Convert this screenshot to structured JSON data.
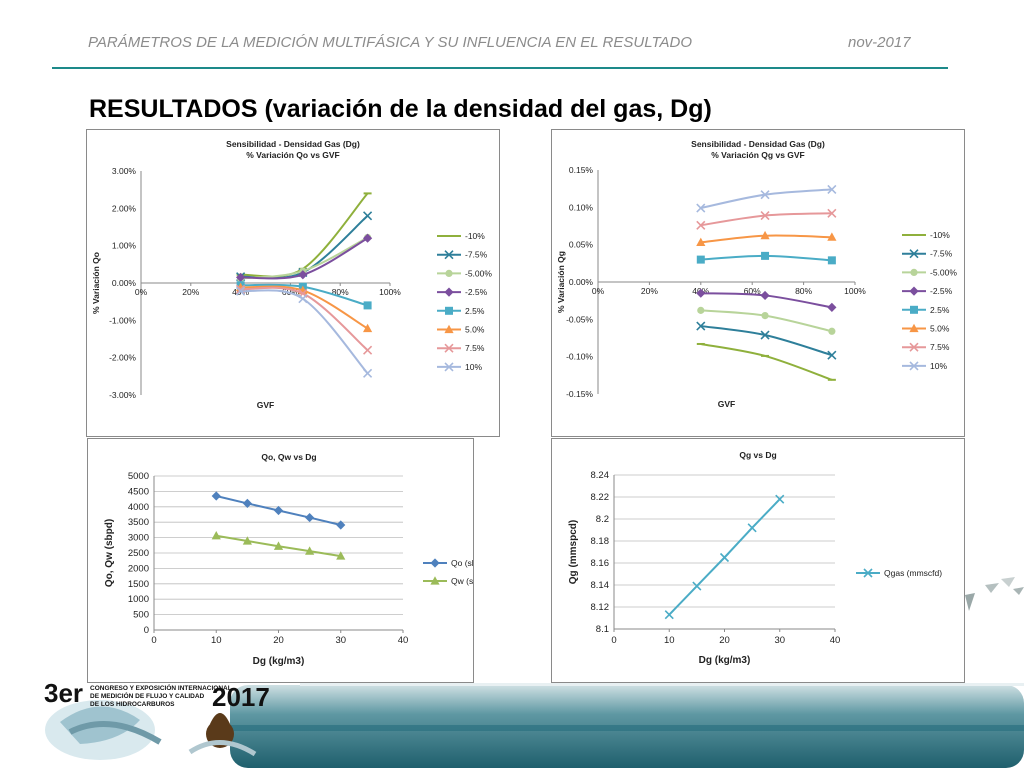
{
  "header": {
    "left_text": "PARÁMETROS DE LA MEDICIÓN MULTIFÁSICA Y SU INFLUENCIA EN EL RESULTADO",
    "right_text": "nov-2017",
    "accent_color": "#1d8a8a"
  },
  "slide_title": "RESULTADOS (variación de la densidad del gas, Dg)",
  "logo": {
    "big_text": "3er",
    "line1": "CONGRESO Y EXPOSICIÓN INTERNACIONAL",
    "line2": "DE MEDICIÓN DE FLUJO Y CALIDAD",
    "line3": "DE LOS HIDROCARBUROS",
    "year": "2017"
  },
  "chart_data": [
    {
      "type": "line",
      "title": "Sensibilidad - Densidad Gas (Dg)",
      "subtitle": "% Variación Qo vs GVF",
      "xlabel": "GVF",
      "ylabel": "% Variación Qo",
      "xlim": [
        0,
        100
      ],
      "ylim": [
        -3,
        3
      ],
      "xticks": [
        "0%",
        "20%",
        "40%",
        "60%",
        "80%",
        "100%"
      ],
      "yticks": [
        "3.00%",
        "2.00%",
        "1.00%",
        "0.00%",
        "-1.00%",
        "-2.00%",
        "-3.00%"
      ],
      "legend_position": "right",
      "x": [
        40,
        65,
        91
      ],
      "series": [
        {
          "name": "-10%",
          "values": [
            0.22,
            0.38,
            2.4
          ],
          "color": "#8fb03c",
          "marker": "dash"
        },
        {
          "name": "-7.5%",
          "values": [
            0.17,
            0.28,
            1.8
          ],
          "color": "#2e7f9a",
          "marker": "x"
        },
        {
          "name": "-5.00%",
          "values": [
            0.12,
            0.32,
            1.22
          ],
          "color": "#b8d49a",
          "marker": "circle"
        },
        {
          "name": "-2.5%",
          "values": [
            0.15,
            0.22,
            1.2
          ],
          "color": "#7b4f9e",
          "marker": "diamond"
        },
        {
          "name": "2.5%",
          "values": [
            -0.06,
            -0.1,
            -0.6
          ],
          "color": "#4aacc6",
          "marker": "square"
        },
        {
          "name": "5.0%",
          "values": [
            -0.12,
            -0.2,
            -1.22
          ],
          "color": "#f79646",
          "marker": "triangle"
        },
        {
          "name": "7.5%",
          "values": [
            -0.17,
            -0.28,
            -1.8
          ],
          "color": "#e6989a",
          "marker": "x"
        },
        {
          "name": "10%",
          "values": [
            -0.22,
            -0.42,
            -2.42
          ],
          "color": "#a6b9de",
          "marker": "x"
        }
      ]
    },
    {
      "type": "line",
      "title": "Sensibilidad - Densidad Gas (Dg)",
      "subtitle": "% Variación Qg vs GVF",
      "xlabel": "GVF",
      "ylabel": "% Variación Qg",
      "xlim": [
        0,
        100
      ],
      "ylim": [
        -0.15,
        0.15
      ],
      "xticks": [
        "0%",
        "20%",
        "40%",
        "60%",
        "80%",
        "100%"
      ],
      "yticks": [
        "0.15%",
        "0.10%",
        "0.05%",
        "0.00%",
        "-0.05%",
        "-0.10%",
        "-0.15%"
      ],
      "legend_position": "right",
      "x": [
        40,
        65,
        91
      ],
      "series": [
        {
          "name": "-10%",
          "values": [
            -0.083,
            -0.099,
            -0.131
          ],
          "color": "#8fb03c",
          "marker": "dash"
        },
        {
          "name": "-7.5%",
          "values": [
            -0.059,
            -0.071,
            -0.098
          ],
          "color": "#2e7f9a",
          "marker": "x"
        },
        {
          "name": "-5.00%",
          "values": [
            -0.038,
            -0.045,
            -0.066
          ],
          "color": "#b8d49a",
          "marker": "circle"
        },
        {
          "name": "-2.5%",
          "values": [
            -0.015,
            -0.018,
            -0.034
          ],
          "color": "#7b4f9e",
          "marker": "diamond"
        },
        {
          "name": "2.5%",
          "values": [
            0.03,
            0.035,
            0.029
          ],
          "color": "#4aacc6",
          "marker": "square"
        },
        {
          "name": "5.0%",
          "values": [
            0.053,
            0.062,
            0.06
          ],
          "color": "#f79646",
          "marker": "triangle"
        },
        {
          "name": "7.5%",
          "values": [
            0.076,
            0.089,
            0.092
          ],
          "color": "#e6989a",
          "marker": "x"
        },
        {
          "name": "10%",
          "values": [
            0.099,
            0.117,
            0.124
          ],
          "color": "#a6b9de",
          "marker": "x"
        }
      ]
    },
    {
      "type": "line",
      "title": "Qo, Qw vs Dg",
      "xlabel": "Dg (kg/m3)",
      "ylabel": "Qo, Qw (sbpd)",
      "xlim": [
        0,
        40
      ],
      "ylim": [
        0,
        5000
      ],
      "xticks": [
        "0",
        "10",
        "20",
        "30",
        "40"
      ],
      "yticks": [
        "5000",
        "4500",
        "4000",
        "3500",
        "3000",
        "2500",
        "2000",
        "1500",
        "1000",
        "500",
        "0"
      ],
      "legend_position": "right",
      "x": [
        10,
        15,
        20,
        25,
        30
      ],
      "series": [
        {
          "name": "Qo (sbpd)",
          "values": [
            4350,
            4110,
            3880,
            3650,
            3410
          ],
          "color": "#4f81bd",
          "marker": "diamond"
        },
        {
          "name": "Qw (sbpd)",
          "values": [
            3060,
            2890,
            2720,
            2560,
            2400
          ],
          "color": "#9bbb59",
          "marker": "triangle"
        }
      ]
    },
    {
      "type": "line",
      "title": "Qg vs Dg",
      "xlabel": "Dg (kg/m3)",
      "ylabel": "Qg (mmspcd)",
      "xlim": [
        0,
        40
      ],
      "ylim": [
        8.1,
        8.24
      ],
      "xticks": [
        "0",
        "10",
        "20",
        "30",
        "40"
      ],
      "yticks": [
        "8.24",
        "8.22",
        "8.2",
        "8.18",
        "8.16",
        "8.14",
        "8.12",
        "8.1"
      ],
      "legend_position": "right",
      "x": [
        10,
        15,
        20,
        25,
        30
      ],
      "series": [
        {
          "name": "Qgas (mmscfd)",
          "values": [
            8.113,
            8.139,
            8.165,
            8.192,
            8.218
          ],
          "color": "#4bacc6",
          "marker": "x"
        }
      ]
    }
  ]
}
